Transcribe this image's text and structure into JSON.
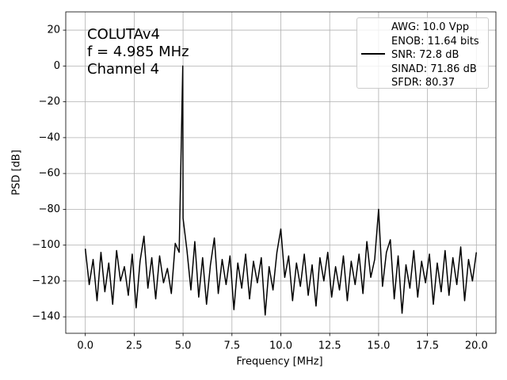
{
  "chart_data": {
    "type": "line",
    "xlabel": "Frequency [MHz]",
    "ylabel": "PSD [dB]",
    "annotations": [
      "COLUTAv4",
      "f = 4.985 MHz",
      "Channel 4"
    ],
    "x": [
      0,
      0.2,
      0.4,
      0.6,
      0.8,
      1,
      1.2,
      1.4,
      1.6,
      1.8,
      2,
      2.2,
      2.4,
      2.6,
      2.8,
      3,
      3.2,
      3.4,
      3.6,
      3.8,
      4,
      4.2,
      4.4,
      4.6,
      4.8,
      4.985,
      5,
      5.2,
      5.4,
      5.6,
      5.8,
      6,
      6.2,
      6.4,
      6.6,
      6.8,
      7,
      7.2,
      7.4,
      7.6,
      7.8,
      8,
      8.2,
      8.4,
      8.6,
      8.8,
      9,
      9.2,
      9.4,
      9.6,
      9.8,
      10,
      10.2,
      10.4,
      10.6,
      10.8,
      11,
      11.2,
      11.4,
      11.6,
      11.8,
      12,
      12.2,
      12.4,
      12.6,
      12.8,
      13,
      13.2,
      13.4,
      13.6,
      13.8,
      14,
      14.2,
      14.4,
      14.6,
      14.8,
      15,
      15.2,
      15.4,
      15.6,
      15.8,
      16,
      16.2,
      16.4,
      16.6,
      16.8,
      17,
      17.2,
      17.4,
      17.6,
      17.8,
      18,
      18.2,
      18.4,
      18.6,
      18.8,
      19,
      19.2,
      19.4,
      19.6,
      19.8,
      20
    ],
    "series": [
      {
        "name": "AWG: 10.0 Vpp\nENOB: 11.64 bits\nSNR: 72.8 dB\nSINAD: 71.86 dB\nSFDR: 80.37",
        "color": "#000000",
        "values": [
          -102,
          -122,
          -108,
          -131,
          -104,
          -126,
          -110,
          -133,
          -103,
          -120,
          -112,
          -128,
          -105,
          -135,
          -109,
          -95,
          -124,
          -107,
          -130,
          -106,
          -121,
          -113,
          -127,
          -99,
          -104,
          0,
          -85,
          -103,
          -125,
          -98,
          -129,
          -107,
          -133,
          -111,
          -96,
          -127,
          -108,
          -122,
          -106,
          -136,
          -110,
          -124,
          -105,
          -130,
          -109,
          -121,
          -107,
          -139,
          -112,
          -125,
          -104,
          -91,
          -118,
          -106,
          -131,
          -110,
          -123,
          -105,
          -128,
          -111,
          -134,
          -107,
          -120,
          -104,
          -129,
          -112,
          -125,
          -106,
          -131,
          -109,
          -122,
          -105,
          -127,
          -98,
          -118,
          -108,
          -80,
          -123,
          -104,
          -97,
          -130,
          -106,
          -138,
          -111,
          -124,
          -103,
          -129,
          -109,
          -121,
          -105,
          -133,
          -110,
          -126,
          -103,
          -128,
          -107,
          -122,
          -101,
          -131,
          -108,
          -120,
          -104
        ]
      }
    ],
    "xlim": [
      -1,
      21
    ],
    "xticks": [
      {
        "value": 0,
        "label": "0.0"
      },
      2.5,
      {
        "value": 5,
        "label": "5.0"
      },
      7.5,
      {
        "value": 10,
        "label": "10.0"
      },
      12.5,
      {
        "value": 15,
        "label": "15.0"
      },
      17.5,
      {
        "value": 20,
        "label": "20.0"
      }
    ],
    "ylim": [
      -149.2,
      30.2
    ],
    "yticks": [
      {
        "value": -140,
        "label": "−140"
      },
      {
        "value": -120,
        "label": "−120"
      },
      {
        "value": -100,
        "label": "−100"
      },
      {
        "value": -80,
        "label": "−80"
      },
      {
        "value": -60,
        "label": "−60"
      },
      {
        "value": -40,
        "label": "−40"
      },
      {
        "value": -20,
        "label": "−20"
      },
      0,
      20
    ],
    "grid": true,
    "legend": "upper right"
  }
}
